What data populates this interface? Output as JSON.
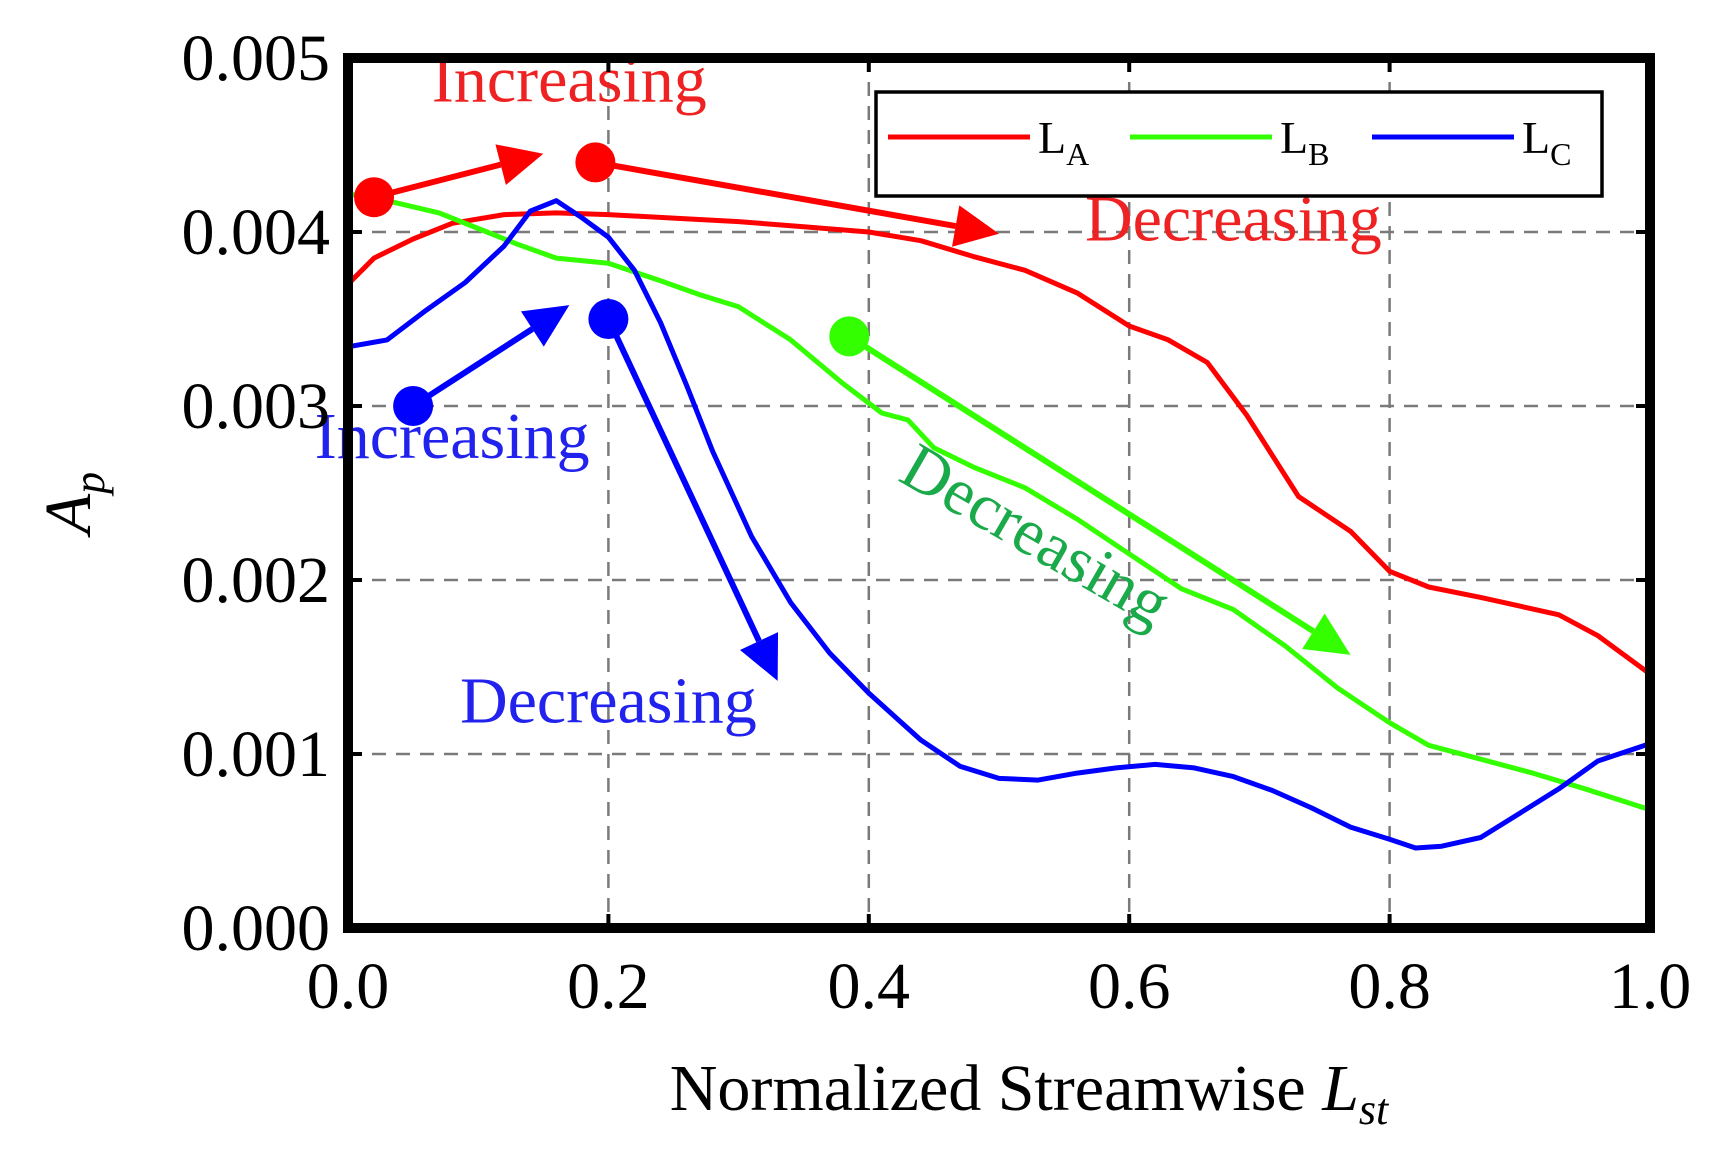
{
  "chart_data": {
    "type": "line",
    "xlabel": "Normalized Streamwise",
    "xlabel_symbol": "L",
    "xlabel_subscript": "st",
    "ylabel_symbol": "A",
    "ylabel_subscript": "p",
    "xlim": [
      0.0,
      1.0
    ],
    "ylim": [
      0.0,
      0.005
    ],
    "x_ticks": [
      "0.0",
      "0.2",
      "0.4",
      "0.6",
      "0.8",
      "1.0"
    ],
    "y_ticks": [
      "0.000",
      "0.001",
      "0.002",
      "0.003",
      "0.004",
      "0.005"
    ],
    "grid": "dashed at x = 0.2, 0.4, 0.6, 0.8 and y = 0.001 to 0.004",
    "legend_position": "top-right",
    "series": [
      {
        "name": "L",
        "name_subscript": "A",
        "color": "#ff0000",
        "x": [
          0.0,
          0.02,
          0.05,
          0.08,
          0.12,
          0.16,
          0.2,
          0.25,
          0.3,
          0.35,
          0.4,
          0.44,
          0.48,
          0.52,
          0.56,
          0.6,
          0.63,
          0.66,
          0.69,
          0.73,
          0.77,
          0.8,
          0.83,
          0.87,
          0.9,
          0.93,
          0.96,
          1.0
        ],
        "y": [
          0.0037,
          0.00385,
          0.00396,
          0.00405,
          0.0041,
          0.00411,
          0.0041,
          0.00408,
          0.00406,
          0.00403,
          0.004,
          0.00395,
          0.00386,
          0.00378,
          0.00365,
          0.00346,
          0.00338,
          0.00325,
          0.00295,
          0.00248,
          0.00228,
          0.00205,
          0.00196,
          0.0019,
          0.00185,
          0.0018,
          0.00168,
          0.00146
        ]
      },
      {
        "name": "L",
        "name_subscript": "B",
        "color": "#33ff00",
        "x": [
          0.0,
          0.03,
          0.07,
          0.1,
          0.13,
          0.16,
          0.2,
          0.24,
          0.27,
          0.3,
          0.34,
          0.38,
          0.41,
          0.43,
          0.45,
          0.48,
          0.52,
          0.56,
          0.6,
          0.64,
          0.68,
          0.72,
          0.76,
          0.8,
          0.83,
          0.87,
          0.91,
          0.95,
          1.0
        ],
        "y": [
          0.00422,
          0.00418,
          0.00411,
          0.00402,
          0.00393,
          0.00385,
          0.00382,
          0.00372,
          0.00364,
          0.00357,
          0.00338,
          0.00313,
          0.00296,
          0.00292,
          0.00276,
          0.00265,
          0.00253,
          0.00235,
          0.00215,
          0.00195,
          0.00183,
          0.00162,
          0.00138,
          0.00118,
          0.00105,
          0.00097,
          0.00089,
          0.0008,
          0.00068
        ]
      },
      {
        "name": "L",
        "name_subscript": "C",
        "color": "#0000ff",
        "x": [
          0.0,
          0.03,
          0.06,
          0.09,
          0.12,
          0.14,
          0.16,
          0.18,
          0.2,
          0.22,
          0.24,
          0.26,
          0.28,
          0.31,
          0.34,
          0.37,
          0.4,
          0.44,
          0.47,
          0.5,
          0.53,
          0.56,
          0.59,
          0.62,
          0.65,
          0.68,
          0.71,
          0.74,
          0.77,
          0.8,
          0.82,
          0.84,
          0.87,
          0.9,
          0.93,
          0.96,
          1.0
        ],
        "y": [
          0.00334,
          0.00338,
          0.00355,
          0.00371,
          0.00392,
          0.00412,
          0.00418,
          0.00408,
          0.00397,
          0.00378,
          0.00348,
          0.00312,
          0.00274,
          0.00225,
          0.00187,
          0.00158,
          0.00135,
          0.00108,
          0.00093,
          0.00086,
          0.00085,
          0.00089,
          0.00092,
          0.00094,
          0.00092,
          0.00087,
          0.00079,
          0.00069,
          0.00058,
          0.00051,
          0.00046,
          0.00047,
          0.00052,
          0.00066,
          0.0008,
          0.00096,
          0.00106
        ]
      }
    ],
    "annotations": [
      {
        "text": "Increasing",
        "color": "#ee2222",
        "x": 0.17,
        "y": 0.00475,
        "rotate": 0
      },
      {
        "text": "Decreasing",
        "color": "#ee2222",
        "x": 0.68,
        "y": 0.00395,
        "rotate": 0
      },
      {
        "text": "Increasing",
        "color": "#2222ee",
        "x": 0.08,
        "y": 0.0027,
        "rotate": 0
      },
      {
        "text": "Decreasing",
        "color": "#2222ee",
        "x": 0.2,
        "y": 0.00118,
        "rotate": 0
      },
      {
        "text": "Decreasing",
        "color": "#1aaa4a",
        "x": 0.52,
        "y": 0.00215,
        "rotate": 30
      }
    ],
    "trend_arrows": [
      {
        "color": "#ff0000",
        "from": [
          0.02,
          0.0042
        ],
        "to": [
          0.15,
          0.00445
        ]
      },
      {
        "color": "#ff0000",
        "from": [
          0.19,
          0.0044
        ],
        "to": [
          0.5,
          0.00399
        ]
      },
      {
        "color": "#0000ff",
        "from": [
          0.05,
          0.003
        ],
        "to": [
          0.17,
          0.00358
        ]
      },
      {
        "color": "#0000ff",
        "from": [
          0.2,
          0.0035
        ],
        "to": [
          0.33,
          0.00142
        ]
      },
      {
        "color": "#33ff00",
        "from": [
          0.385,
          0.0034
        ],
        "to": [
          0.77,
          0.00157
        ]
      }
    ]
  }
}
